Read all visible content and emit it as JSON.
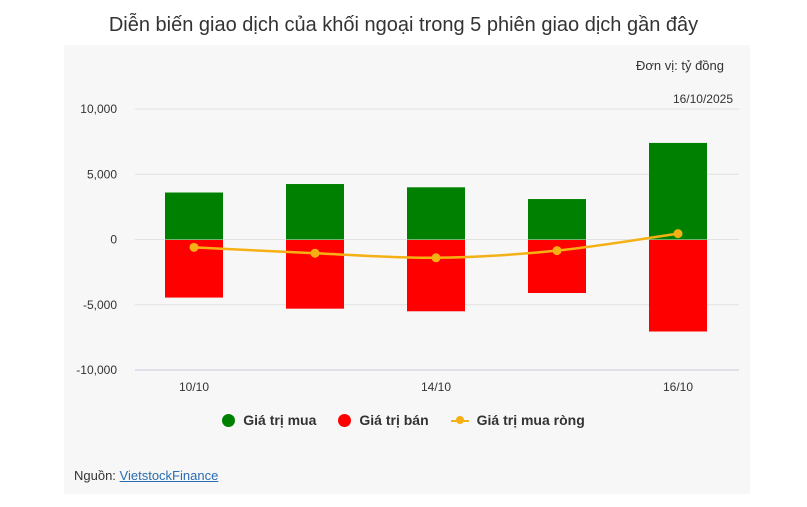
{
  "title": "Diễn biến giao dịch của khối ngoại trong 5 phiên giao dịch gần đây",
  "unit_label": "Đơn vị: tỷ đồng",
  "date_label": "16/10/2025",
  "source": {
    "prefix": "Nguồn: ",
    "link_text": "VietstockFinance"
  },
  "colors": {
    "buy": "#008000",
    "sell": "#ff0000",
    "net": "#f5b014"
  },
  "chart_data": {
    "type": "bar",
    "categories": [
      "10/10",
      "",
      "14/10",
      "",
      "16/10"
    ],
    "series": [
      {
        "name": "Giá trị mua",
        "values": [
          3600,
          4250,
          4000,
          3100,
          7400
        ]
      },
      {
        "name": "Giá trị bán",
        "values": [
          -4450,
          -5300,
          -5500,
          -4100,
          -7050
        ]
      },
      {
        "name": "Giá trị mua ròng",
        "type": "line",
        "values": [
          -600,
          -1050,
          -1400,
          -850,
          450
        ]
      }
    ],
    "ylim": [
      -10000,
      10000
    ],
    "yticks": [
      10000,
      5000,
      0,
      -5000,
      -10000
    ],
    "ytick_labels": [
      "10,000",
      "5,000",
      "0",
      "-5,000",
      "-10,000"
    ],
    "grid": true,
    "legend": "bottom"
  }
}
